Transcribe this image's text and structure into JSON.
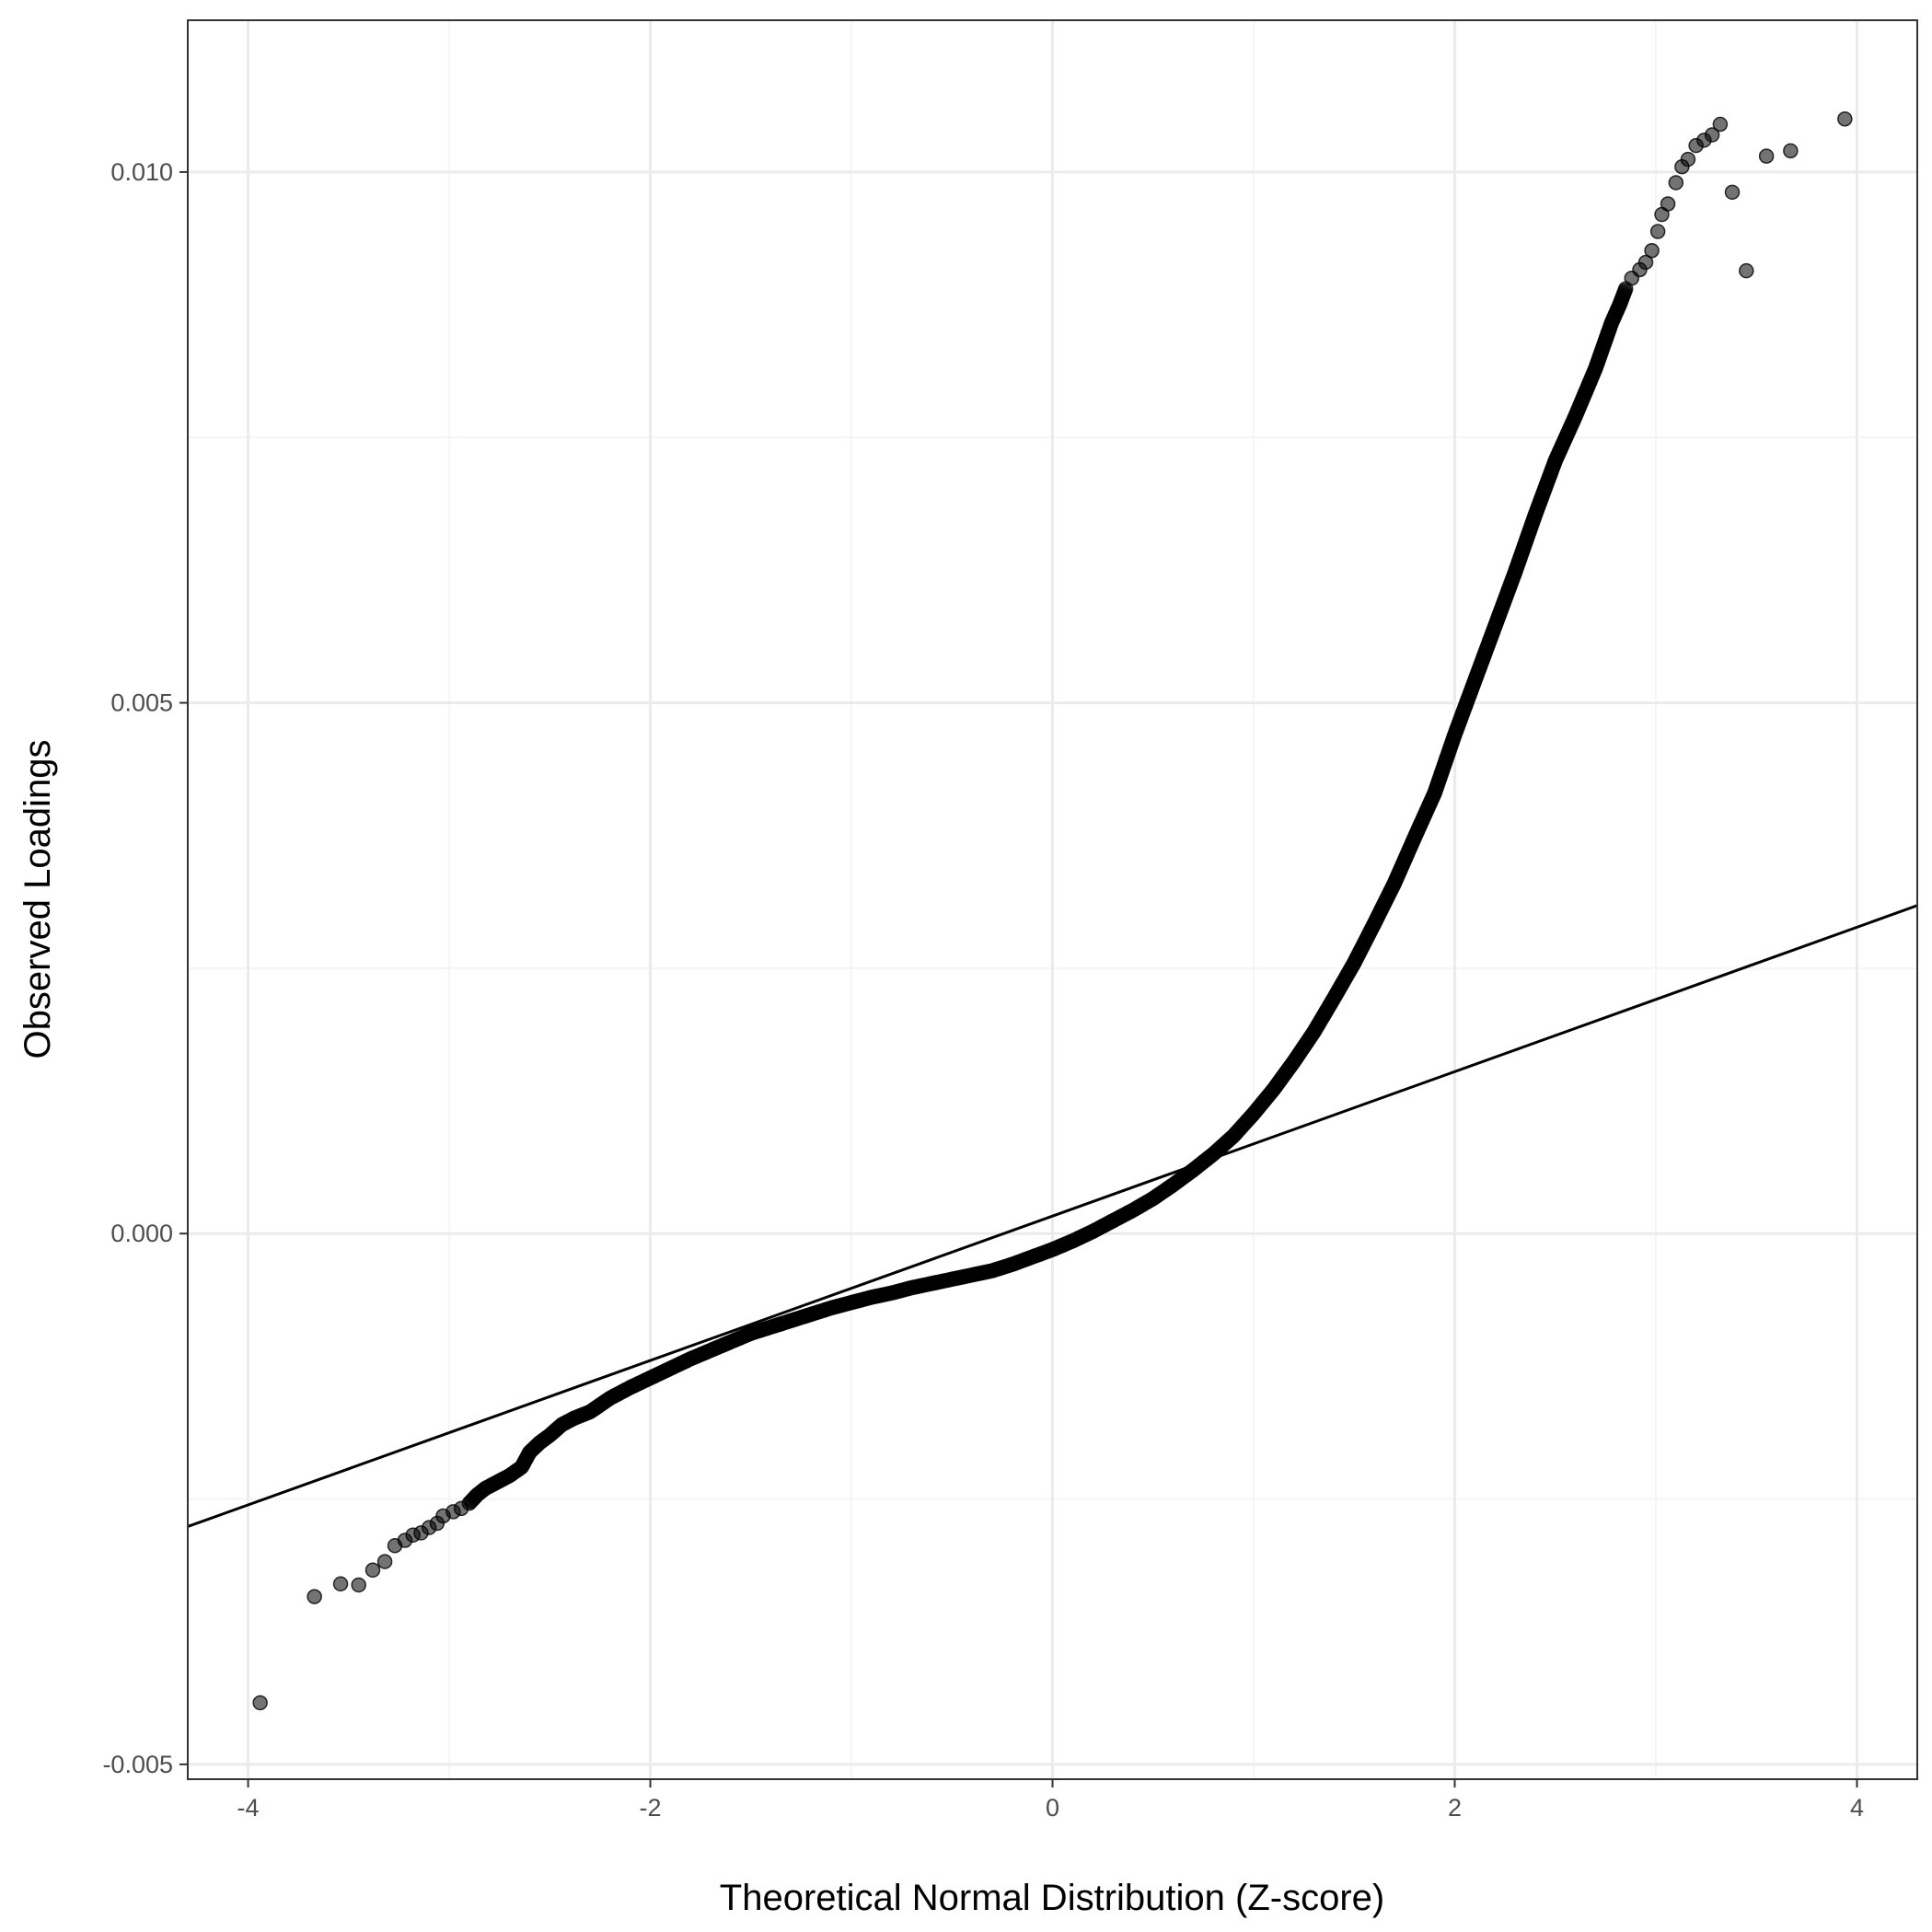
{
  "chart_data": {
    "type": "scatter",
    "title": "",
    "xlabel": "Theoretical Normal Distribution (Z-score)",
    "ylabel": "Observed Loadings",
    "xlim": [
      -4.3,
      4.3
    ],
    "ylim": [
      -0.00514,
      0.01143
    ],
    "x_ticks": [
      -4,
      -2,
      0,
      2,
      4
    ],
    "x_tick_labels": [
      "-4",
      "-2",
      "0",
      "2",
      "4"
    ],
    "y_ticks": [
      -0.005,
      0.0,
      0.005,
      0.01
    ],
    "y_tick_labels": [
      "-0.005",
      "0.000",
      "0.005",
      "0.010"
    ],
    "grid": true,
    "legend": "none",
    "reference_line": {
      "type": "line",
      "points": [
        [
          -4.3,
          -0.00276
        ],
        [
          4.3,
          0.00309
        ]
      ]
    },
    "series": [
      {
        "type": "scatter",
        "points": [
          [
            -3.94,
            -0.00442
          ],
          [
            -3.67,
            -0.00342
          ],
          [
            -3.54,
            -0.0033
          ],
          [
            -3.45,
            -0.00331
          ],
          [
            -3.38,
            -0.00317
          ],
          [
            -3.32,
            -0.00309
          ],
          [
            -3.27,
            -0.00294
          ],
          [
            -3.22,
            -0.00289
          ],
          [
            -3.18,
            -0.00284
          ],
          [
            -3.14,
            -0.00282
          ],
          [
            -3.1,
            -0.00277
          ],
          [
            -3.06,
            -0.00273
          ],
          [
            -3.03,
            -0.00266
          ],
          [
            -2.98,
            -0.00262
          ],
          [
            -2.94,
            -0.00259
          ],
          [
            -2.9,
            -0.00254
          ],
          [
            -2.86,
            -0.00246
          ],
          [
            -2.82,
            -0.0024
          ],
          [
            -2.76,
            -0.00234
          ],
          [
            -2.7,
            -0.00228
          ],
          [
            -2.64,
            -0.0022
          ],
          [
            -2.6,
            -0.00206
          ],
          [
            -2.55,
            -0.00197
          ],
          [
            -2.5,
            -0.0019
          ],
          [
            -2.44,
            -0.0018
          ],
          [
            -2.38,
            -0.00174
          ],
          [
            -2.3,
            -0.00168
          ],
          [
            -2.2,
            -0.00155
          ],
          [
            -2.1,
            -0.00145
          ],
          [
            -2.0,
            -0.00136
          ],
          [
            -1.9,
            -0.00127
          ],
          [
            -1.8,
            -0.00118
          ],
          [
            -1.7,
            -0.0011
          ],
          [
            -1.6,
            -0.00102
          ],
          [
            -1.5,
            -0.00094
          ],
          [
            -1.4,
            -0.00088
          ],
          [
            -1.3,
            -0.00082
          ],
          [
            -1.2,
            -0.00076
          ],
          [
            -1.1,
            -0.0007
          ],
          [
            -1.0,
            -0.00065
          ],
          [
            -0.9,
            -0.0006
          ],
          [
            -0.8,
            -0.00056
          ],
          [
            -0.7,
            -0.00051
          ],
          [
            -0.6,
            -0.00047
          ],
          [
            -0.5,
            -0.00043
          ],
          [
            -0.4,
            -0.00039
          ],
          [
            -0.3,
            -0.00035
          ],
          [
            -0.2,
            -0.00029
          ],
          [
            -0.1,
            -0.00022
          ],
          [
            0.0,
            -0.00015
          ],
          [
            0.1,
            -7e-05
          ],
          [
            0.2,
            2e-05
          ],
          [
            0.3,
            0.00012
          ],
          [
            0.4,
            0.00022
          ],
          [
            0.5,
            0.00033
          ],
          [
            0.6,
            0.00046
          ],
          [
            0.7,
            0.0006
          ],
          [
            0.8,
            0.00075
          ],
          [
            0.9,
            0.00092
          ],
          [
            1.0,
            0.00113
          ],
          [
            1.1,
            0.00136
          ],
          [
            1.2,
            0.00162
          ],
          [
            1.3,
            0.0019
          ],
          [
            1.4,
            0.00222
          ],
          [
            1.5,
            0.00255
          ],
          [
            1.6,
            0.00292
          ],
          [
            1.7,
            0.0033
          ],
          [
            1.8,
            0.00373
          ],
          [
            1.9,
            0.00415
          ],
          [
            2.0,
            0.0047
          ],
          [
            2.1,
            0.00521
          ],
          [
            2.2,
            0.00572
          ],
          [
            2.3,
            0.00623
          ],
          [
            2.4,
            0.00677
          ],
          [
            2.5,
            0.00728
          ],
          [
            2.6,
            0.0077
          ],
          [
            2.7,
            0.00815
          ],
          [
            2.78,
            0.00858
          ],
          [
            2.82,
            0.00875
          ],
          [
            2.85,
            0.0089
          ],
          [
            2.88,
            0.009
          ],
          [
            2.92,
            0.00908
          ],
          [
            2.95,
            0.00915
          ],
          [
            2.98,
            0.00926
          ],
          [
            3.01,
            0.00944
          ],
          [
            3.03,
            0.0096
          ],
          [
            3.06,
            0.0097
          ],
          [
            3.1,
            0.0099
          ],
          [
            3.13,
            0.01005
          ],
          [
            3.16,
            0.01012
          ],
          [
            3.2,
            0.01025
          ],
          [
            3.24,
            0.0103
          ],
          [
            3.28,
            0.01035
          ],
          [
            3.32,
            0.01045
          ],
          [
            3.38,
            0.00981
          ],
          [
            3.45,
            0.00907
          ],
          [
            3.55,
            0.01015
          ],
          [
            3.67,
            0.0102
          ],
          [
            3.94,
            0.0105
          ]
        ]
      }
    ]
  }
}
